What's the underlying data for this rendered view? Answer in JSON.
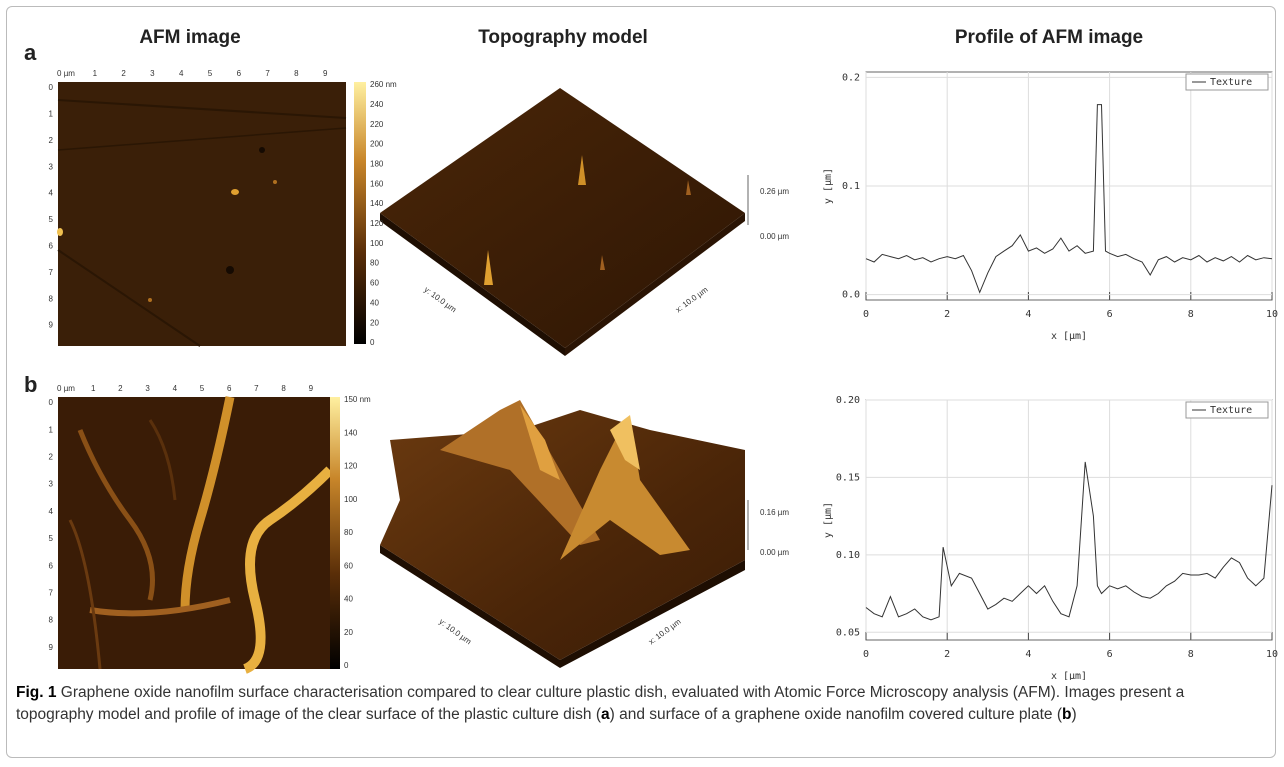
{
  "headers": {
    "afm": "AFM image",
    "topo": "Topography model",
    "profile": "Profile of AFM image"
  },
  "panels": {
    "a": "a",
    "b": "b"
  },
  "afm_a": {
    "xticks": [
      "0 µm",
      "1",
      "2",
      "3",
      "4",
      "5",
      "6",
      "7",
      "8",
      "9"
    ],
    "yticks": [
      "0",
      "1",
      "2",
      "3",
      "4",
      "5",
      "6",
      "7",
      "8",
      "9"
    ],
    "colorbar": [
      "260 nm",
      "240",
      "220",
      "200",
      "180",
      "160",
      "140",
      "120",
      "100",
      "80",
      "60",
      "40",
      "20",
      "0"
    ]
  },
  "afm_b": {
    "xticks": [
      "0 µm",
      "1",
      "2",
      "3",
      "4",
      "5",
      "6",
      "7",
      "8",
      "9"
    ],
    "yticks": [
      "0",
      "1",
      "2",
      "3",
      "4",
      "5",
      "6",
      "7",
      "8",
      "9"
    ],
    "colorbar": [
      "150 nm",
      "140",
      "120",
      "100",
      "80",
      "60",
      "40",
      "20",
      "0"
    ]
  },
  "topo_a": {
    "zmax": "0.26 µm",
    "zmin": "0.00 µm",
    "yaxis": "y: 10.0 µm",
    "xaxis": "x: 10.0 µm"
  },
  "topo_b": {
    "zmax": "0.16 µm",
    "zmin": "0.00 µm",
    "yaxis": "y: 10.0 µm",
    "xaxis": "x: 10.0 µm"
  },
  "chart_data": [
    {
      "type": "line",
      "x_label": "x [µm]",
      "y_label": "y [µm]",
      "legend": "upper right",
      "grid": true,
      "xlim": [
        0,
        10
      ],
      "xticks": [
        0,
        2,
        4,
        6,
        8,
        10
      ],
      "ylim": [
        -0.005,
        0.205
      ],
      "yticks": [
        {
          "value": 0,
          "label": "0.0"
        },
        0.1,
        0.2
      ],
      "x": [
        0,
        0.2,
        0.4,
        0.6,
        0.8,
        1.0,
        1.2,
        1.4,
        1.6,
        1.8,
        2.0,
        2.2,
        2.4,
        2.6,
        2.8,
        3.0,
        3.2,
        3.4,
        3.6,
        3.8,
        4.0,
        4.2,
        4.4,
        4.6,
        4.8,
        5.0,
        5.2,
        5.4,
        5.6,
        5.7,
        5.8,
        5.9,
        6.0,
        6.2,
        6.4,
        6.6,
        6.8,
        7.0,
        7.2,
        7.4,
        7.6,
        7.8,
        8.0,
        8.2,
        8.4,
        8.6,
        8.8,
        9.0,
        9.2,
        9.4,
        9.6,
        9.8,
        10.0
      ],
      "series": [
        {
          "name": "Texture",
          "color": "#333333",
          "values": [
            0.033,
            0.03,
            0.037,
            0.035,
            0.033,
            0.036,
            0.032,
            0.034,
            0.03,
            0.033,
            0.035,
            0.033,
            0.036,
            0.022,
            0.002,
            0.02,
            0.035,
            0.04,
            0.045,
            0.055,
            0.04,
            0.043,
            0.038,
            0.042,
            0.052,
            0.04,
            0.045,
            0.038,
            0.04,
            0.175,
            0.175,
            0.04,
            0.038,
            0.035,
            0.037,
            0.033,
            0.03,
            0.018,
            0.032,
            0.035,
            0.03,
            0.034,
            0.032,
            0.036,
            0.03,
            0.034,
            0.031,
            0.035,
            0.03,
            0.036,
            0.032,
            0.034,
            0.033
          ]
        }
      ]
    },
    {
      "type": "line",
      "x_label": "x [µm]",
      "y_label": "y [µm]",
      "legend": "upper right",
      "grid": true,
      "xlim": [
        0,
        10
      ],
      "xticks": [
        0,
        2,
        4,
        6,
        8,
        10
      ],
      "ylim": [
        0.045,
        0.2
      ],
      "yticks": [
        0.05,
        {
          "value": 0.1,
          "label": "0.10"
        },
        0.15,
        {
          "value": 0.2,
          "label": "0.20"
        }
      ],
      "x": [
        0,
        0.2,
        0.4,
        0.6,
        0.8,
        1.0,
        1.2,
        1.4,
        1.6,
        1.8,
        1.9,
        2.1,
        2.3,
        2.6,
        2.8,
        3.0,
        3.2,
        3.4,
        3.6,
        3.8,
        4.0,
        4.2,
        4.4,
        4.6,
        4.8,
        5.0,
        5.2,
        5.4,
        5.6,
        5.7,
        5.8,
        6.0,
        6.2,
        6.4,
        6.6,
        6.8,
        7.0,
        7.2,
        7.4,
        7.6,
        7.8,
        8.0,
        8.2,
        8.4,
        8.6,
        8.8,
        9.0,
        9.2,
        9.4,
        9.6,
        9.8,
        10.0
      ],
      "series": [
        {
          "name": "Texture",
          "color": "#333333",
          "values": [
            0.066,
            0.062,
            0.06,
            0.073,
            0.06,
            0.062,
            0.065,
            0.06,
            0.058,
            0.06,
            0.105,
            0.08,
            0.088,
            0.085,
            0.075,
            0.065,
            0.068,
            0.072,
            0.07,
            0.075,
            0.08,
            0.075,
            0.08,
            0.07,
            0.062,
            0.06,
            0.08,
            0.16,
            0.125,
            0.08,
            0.075,
            0.08,
            0.078,
            0.08,
            0.076,
            0.073,
            0.072,
            0.075,
            0.08,
            0.083,
            0.088,
            0.087,
            0.087,
            0.088,
            0.085,
            0.092,
            0.098,
            0.095,
            0.085,
            0.08,
            0.085,
            0.145
          ]
        }
      ]
    }
  ],
  "caption": {
    "label": "Fig. 1",
    "parts": [
      " Graphene oxide nanofilm surface characterisation compared to clear culture plastic dish, evaluated with Atomic Force Microscopy analysis (AFM). Images present a topography model and profile of image of the clear surface of the plastic culture dish (",
      "a",
      ") and surface of a graphene oxide nanofilm covered culture plate (",
      "b",
      ")"
    ]
  }
}
